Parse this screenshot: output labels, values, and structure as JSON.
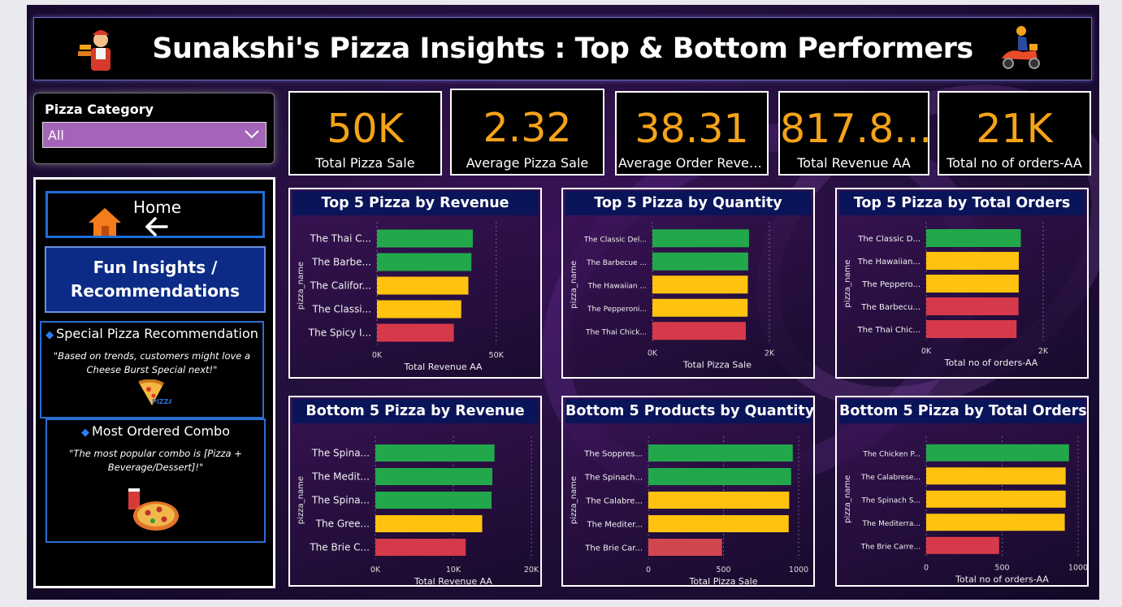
{
  "header": {
    "title": "Sunakshi's Pizza Insights : Top & Bottom Performers"
  },
  "slicer": {
    "label": "Pizza Category",
    "selected": "All"
  },
  "nav": {
    "home_label": "Home",
    "fun_label_line1": "Fun Insights /",
    "fun_label_line2": "Recommendations"
  },
  "insights": [
    {
      "title": "Special Pizza Recommendation",
      "body": "\"Based on trends, customers might love a Cheese Burst Special next!\"",
      "badge": "PIZZA"
    },
    {
      "title": "Most Ordered Combo",
      "body": "\"The most popular combo is [Pizza + Beverage/Dessert]!\""
    }
  ],
  "kpis": [
    {
      "value": "50K",
      "caption": "Total Pizza Sale"
    },
    {
      "value": "2.32",
      "caption": "Average Pizza Sale"
    },
    {
      "value": "38.31",
      "caption": "Average Order Revenue"
    },
    {
      "value": "817.8...",
      "caption": "Total Revenue AA"
    },
    {
      "value": "21K",
      "caption": "Total no of orders-AA"
    }
  ],
  "colors": {
    "green": "#22a84a",
    "yellow": "#fec20f",
    "red": "#d63a4a",
    "red_light": "#d2474f",
    "kpi_value": "#f5a319"
  },
  "chart_data": [
    {
      "type": "bar",
      "orientation": "horizontal",
      "title": "Top 5 Pizza by Revenue",
      "ylabel": "pizza_name",
      "xlabel": "Total Revenue AA",
      "categories": [
        "The Thai C...",
        "The Barbe...",
        "The Califor...",
        "The Classi...",
        "The Spicy I..."
      ],
      "values": [
        43434,
        42768,
        41410,
        38180,
        34831
      ],
      "bar_colors": [
        "green",
        "green",
        "yellow",
        "yellow",
        "red"
      ],
      "xticks": [
        "0K",
        "50K"
      ],
      "xlim": [
        0,
        60000
      ]
    },
    {
      "type": "bar",
      "orientation": "horizontal",
      "title": "Top 5 Pizza by Quantity",
      "ylabel": "pizza_name",
      "xlabel": "Total Pizza Sale",
      "categories": [
        "The Classic Del...",
        "The Barbecue ...",
        "The Hawaiian ...",
        "The Pepperoni...",
        "The Thai Chick..."
      ],
      "values": [
        2453,
        2432,
        2422,
        2418,
        2371
      ],
      "bar_colors": [
        "green",
        "green",
        "yellow",
        "yellow",
        "red"
      ],
      "xticks": [
        "0K",
        "2K"
      ],
      "xlim": [
        0,
        3300
      ]
    },
    {
      "type": "bar",
      "orientation": "horizontal",
      "title": "Top 5 Pizza by Total Orders",
      "ylabel": "pizza_name",
      "xlabel": "Total no of orders-AA",
      "categories": [
        "The Classic D...",
        "The Hawaiian...",
        "The Peppero...",
        "The Barbecu...",
        "The Thai Chic..."
      ],
      "values": [
        2329,
        2280,
        2278,
        2273,
        2225
      ],
      "bar_colors": [
        "green",
        "yellow",
        "yellow",
        "red",
        "red"
      ],
      "xticks": [
        "0K",
        "2K"
      ],
      "xlim": [
        0,
        3200
      ]
    },
    {
      "type": "bar",
      "orientation": "horizontal",
      "title": "Bottom 5 Pizza by Revenue",
      "ylabel": "pizza_name",
      "xlabel": "Total Revenue AA",
      "categories": [
        "The Spina...",
        "The Medit...",
        "The Spina...",
        "The Gree...",
        "The Brie C..."
      ],
      "values": [
        15277,
        15000,
        14900,
        13700,
        11588
      ],
      "bar_colors": [
        "green",
        "green",
        "green",
        "yellow",
        "red"
      ],
      "xticks": [
        "0K",
        "10K",
        "20K"
      ],
      "xlim": [
        0,
        20000
      ]
    },
    {
      "type": "bar",
      "orientation": "horizontal",
      "title": "Bottom 5 Products by Quantity",
      "ylabel": "pizza_name",
      "xlabel": "Total Pizza Sale",
      "categories": [
        "The Soppres...",
        "The Spinach...",
        "The Calabre...",
        "The Mediter...",
        "The Brie Car..."
      ],
      "values": [
        961,
        950,
        937,
        934,
        490
      ],
      "bar_colors": [
        "green",
        "green",
        "yellow",
        "yellow",
        "red_light"
      ],
      "xticks": [
        "0",
        "500",
        "1000"
      ],
      "xlim": [
        0,
        1000
      ]
    },
    {
      "type": "bar",
      "orientation": "horizontal",
      "title": "Bottom 5 Pizza by Total Orders",
      "ylabel": "pizza_name",
      "xlabel": "Total no of orders-AA",
      "categories": [
        "The Chicken P...",
        "The Calabrese...",
        "The Spinach S...",
        "The Mediterra...",
        "The Brie Carre..."
      ],
      "values": [
        940,
        918,
        918,
        912,
        480
      ],
      "bar_colors": [
        "green",
        "yellow",
        "yellow",
        "yellow",
        "red"
      ],
      "xticks": [
        "0",
        "500",
        "1000"
      ],
      "xlim": [
        0,
        1000
      ]
    }
  ]
}
